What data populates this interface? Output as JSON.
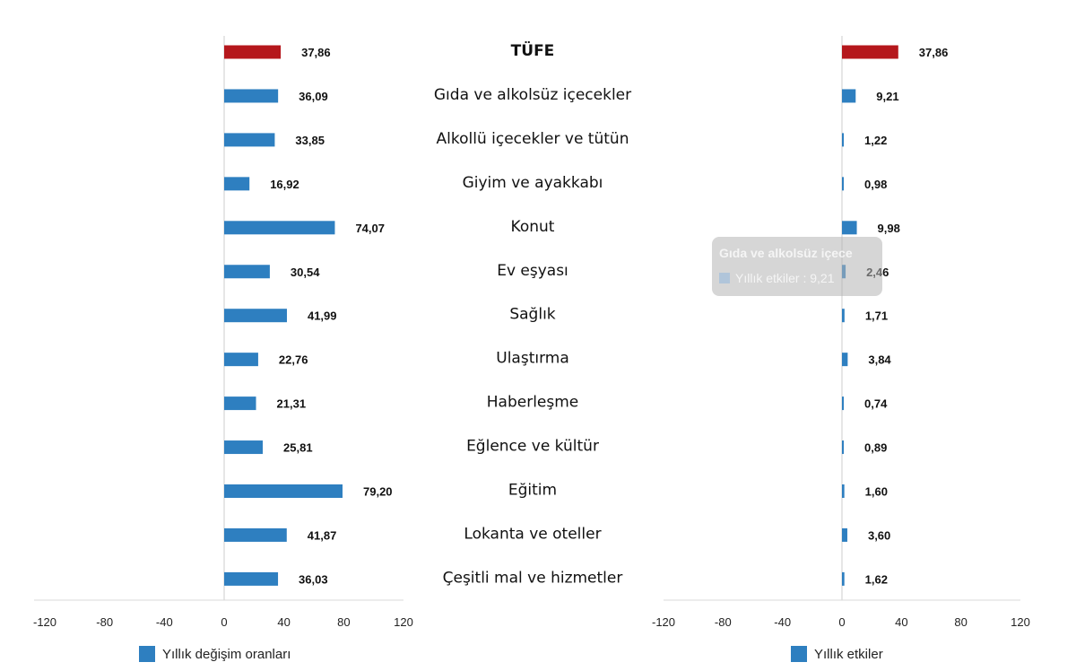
{
  "colors": {
    "bar": "#2e7fc0",
    "highlight": "#b5171c",
    "axis": "#d9d9d9",
    "center_line": "#cccccc"
  },
  "chart_data": [
    {
      "type": "bar",
      "orientation": "horizontal",
      "categories": [
        "TÜFE",
        "Gıda ve alkolsüz içecekler",
        "Alkollü içecekler ve tütün",
        "Giyim ve ayakkabı",
        "Konut",
        "Ev eşyası",
        "Sağlık",
        "Ulaştırma",
        "Haberleşme",
        "Eğlence ve kültür",
        "Eğitim",
        "Lokanta ve oteller",
        "Çeşitli mal ve hizmetler"
      ],
      "series": [
        {
          "name": "Yıllık değişim oranları",
          "values": [
            37.86,
            36.09,
            33.85,
            16.92,
            74.07,
            30.54,
            41.99,
            22.76,
            21.31,
            25.81,
            79.2,
            41.87,
            36.03
          ],
          "labels": [
            "37,86",
            "36,09",
            "33,85",
            "16,92",
            "74,07",
            "30,54",
            "41,99",
            "22,76",
            "21,31",
            "25,81",
            "79,20",
            "41,87",
            "36,03"
          ]
        }
      ],
      "xlim": [
        -120,
        120
      ],
      "xticks": [
        "-120",
        "-80",
        "-40",
        "0",
        "40",
        "80",
        "120"
      ],
      "legend_position": "bottom-left"
    },
    {
      "type": "bar",
      "orientation": "horizontal",
      "categories": [
        "TÜFE",
        "Gıda ve alkolsüz içecekler",
        "Alkollü içecekler ve tütün",
        "Giyim ve ayakkabı",
        "Konut",
        "Ev eşyası",
        "Sağlık",
        "Ulaştırma",
        "Haberleşme",
        "Eğlence ve kültür",
        "Eğitim",
        "Lokanta ve oteller",
        "Çeşitli mal ve hizmetler"
      ],
      "series": [
        {
          "name": "Yıllık etkiler",
          "values": [
            37.86,
            9.21,
            1.22,
            0.98,
            9.98,
            2.46,
            1.71,
            3.84,
            0.74,
            0.89,
            1.6,
            3.6,
            1.62
          ],
          "labels": [
            "37,86",
            "9,21",
            "1,22",
            "0,98",
            "9,98",
            "2,46",
            "1,71",
            "3,84",
            "0,74",
            "0,89",
            "1,60",
            "3,60",
            "1,62"
          ]
        }
      ],
      "xlim": [
        -120,
        120
      ],
      "xticks": [
        "-120",
        "-80",
        "-40",
        "0",
        "40",
        "80",
        "120"
      ],
      "legend_position": "bottom-right"
    }
  ],
  "legend": {
    "left": "Yıllık değişim oranları",
    "right": "Yıllık etkiler"
  },
  "tooltip": {
    "title": "Gıda ve alkolsüz içece",
    "row": "Yıllık etkiler : 9,21"
  }
}
